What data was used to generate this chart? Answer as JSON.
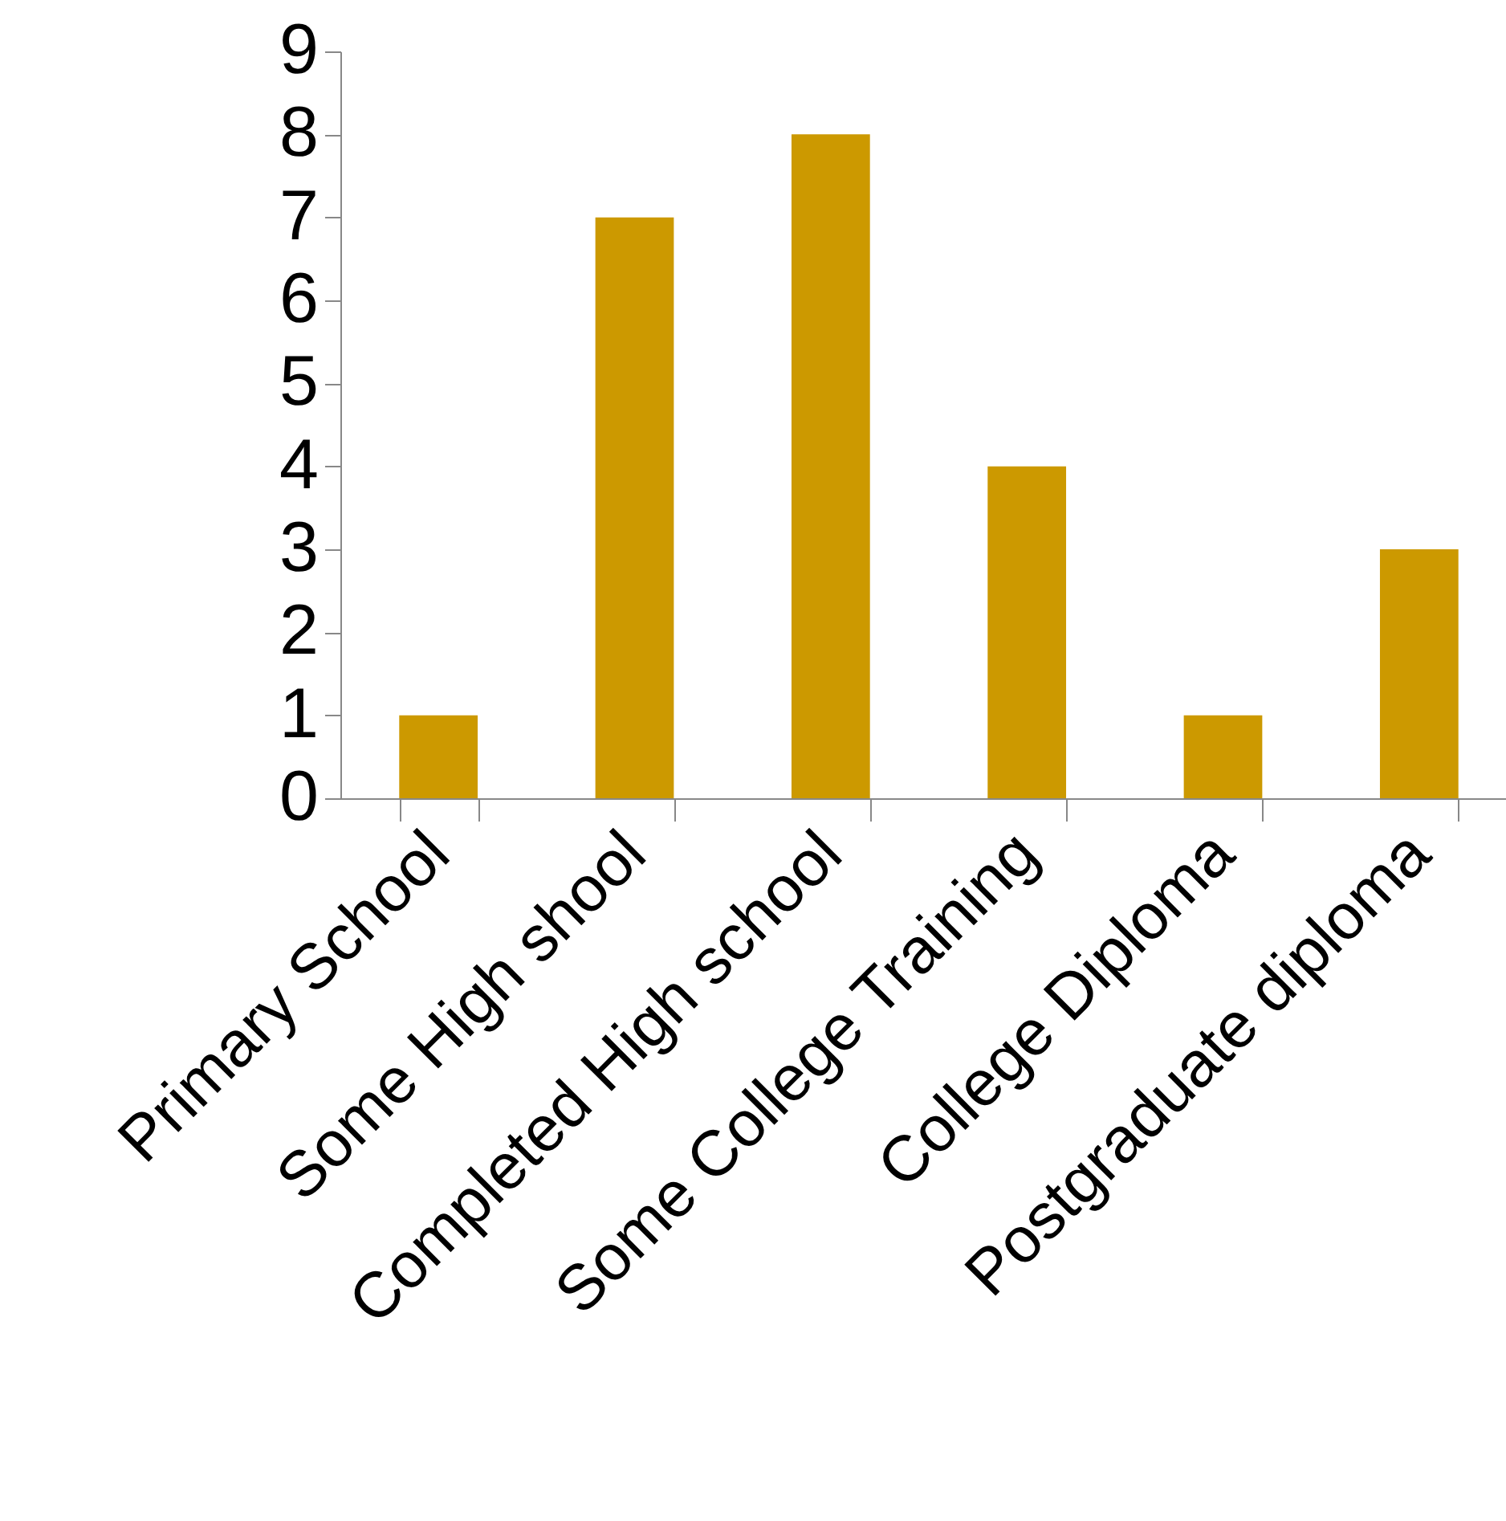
{
  "chart_data": {
    "type": "bar",
    "categories": [
      "Primary School",
      "Some High shool",
      "Completed High school",
      "Some College Training",
      "College Diploma",
      "Postgraduate diploma"
    ],
    "values": [
      1,
      7,
      8,
      4,
      1,
      3
    ],
    "color": "#cc9900",
    "ylim": [
      0,
      9
    ],
    "yticks": [
      0,
      1,
      2,
      3,
      4,
      5,
      6,
      7,
      8,
      9
    ]
  }
}
